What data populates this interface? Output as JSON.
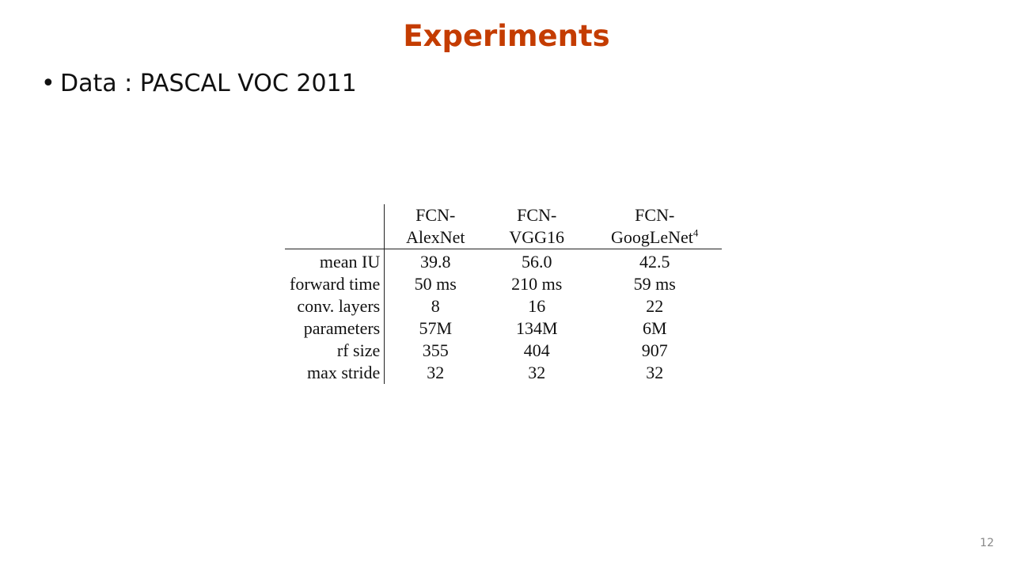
{
  "title": "Experiments",
  "bullet": "Data : PASCAL VOC 2011",
  "table": {
    "headers": [
      {
        "line1": "FCN-",
        "line2": "AlexNet",
        "sup": ""
      },
      {
        "line1": "FCN-",
        "line2": "VGG16",
        "sup": ""
      },
      {
        "line1": "FCN-",
        "line2": "GoogLeNet",
        "sup": "4"
      }
    ],
    "rows": [
      {
        "label": "mean IU",
        "values": [
          "39.8",
          "56.0",
          "42.5"
        ]
      },
      {
        "label": "forward time",
        "values": [
          "50 ms",
          "210 ms",
          "59 ms"
        ]
      },
      {
        "label": "conv. layers",
        "values": [
          "8",
          "16",
          "22"
        ]
      },
      {
        "label": "parameters",
        "values": [
          "57M",
          "134M",
          "6M"
        ]
      },
      {
        "label": "rf size",
        "values": [
          "355",
          "404",
          "907"
        ]
      },
      {
        "label": "max stride",
        "values": [
          "32",
          "32",
          "32"
        ]
      }
    ]
  },
  "page_number": "12"
}
